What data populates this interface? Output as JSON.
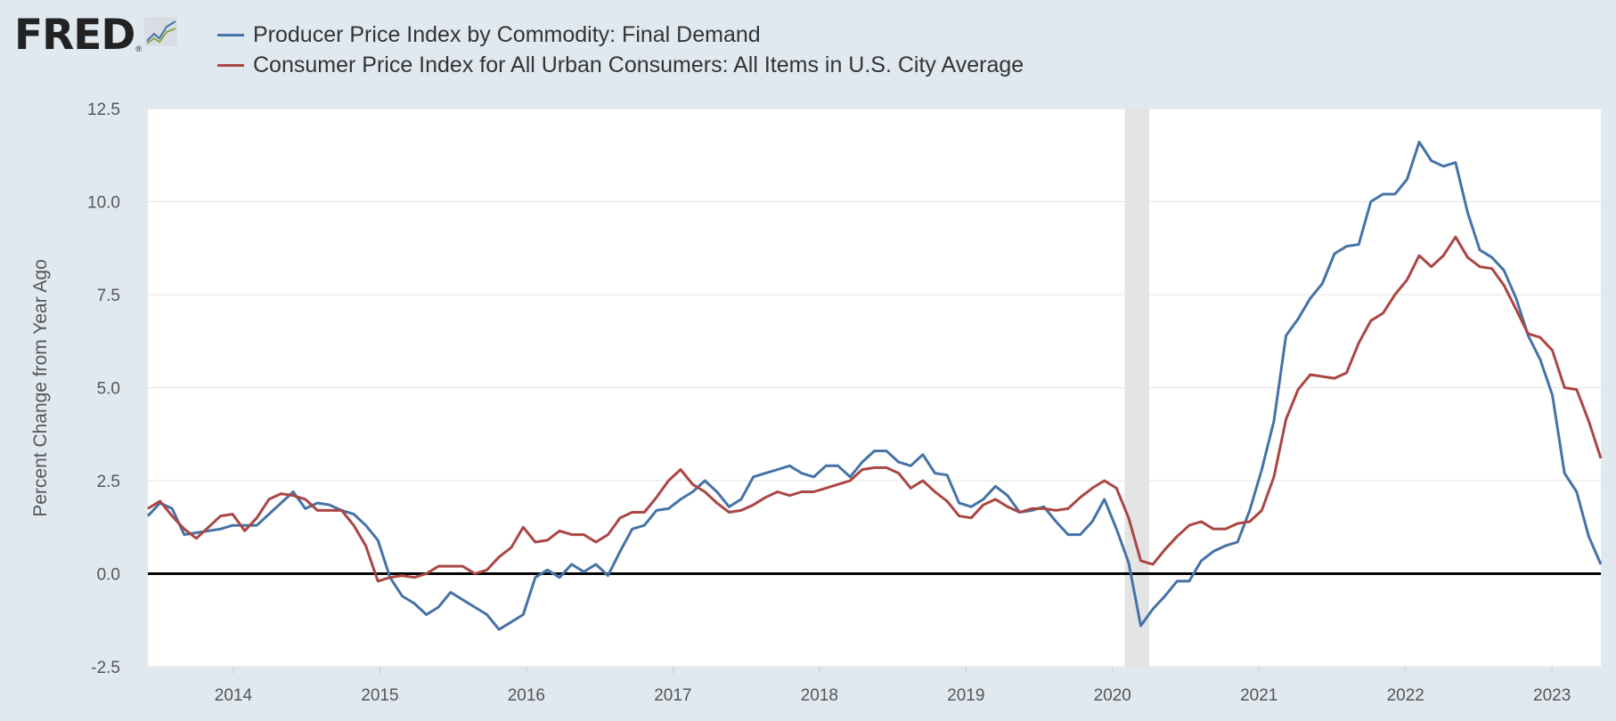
{
  "brand": {
    "name": "FRED",
    "reg": "®"
  },
  "legend": [
    {
      "label": "Producer Price Index by Commodity: Final Demand",
      "color": "#4572a7"
    },
    {
      "label": "Consumer Price Index for All Urban Consumers: All Items in U.S. City Average",
      "color": "#aa4643"
    }
  ],
  "chart_data": {
    "type": "line",
    "title": "",
    "xlabel": "",
    "ylabel": "Percent Change from Year Ago",
    "ylim": [
      -2.5,
      12.5
    ],
    "yticks": [
      "12.5",
      "10.0",
      "7.5",
      "5.0",
      "2.5",
      "0.0",
      "-2.5"
    ],
    "ytick_values": [
      12.5,
      10.0,
      7.5,
      5.0,
      2.5,
      0.0,
      -2.5
    ],
    "xticks": [
      "2014",
      "2015",
      "2016",
      "2017",
      "2018",
      "2019",
      "2020",
      "2021",
      "2022",
      "2023"
    ],
    "xtick_values": [
      2014,
      2015,
      2016,
      2017,
      2018,
      2019,
      2020,
      2021,
      2022,
      2023
    ],
    "x_start": "2013-06",
    "x_end": "2023-05",
    "recession": [
      "2020-02",
      "2020-04"
    ],
    "zero_line": 0,
    "series": [
      {
        "name": "Producer Price Index by Commodity: Final Demand",
        "color": "#4572a7",
        "values": [
          1.55,
          1.9,
          1.75,
          1.05,
          1.1,
          1.15,
          1.2,
          1.3,
          1.3,
          1.3,
          1.6,
          1.9,
          2.2,
          1.75,
          1.9,
          1.85,
          1.7,
          1.6,
          1.3,
          0.9,
          -0.1,
          -0.6,
          -0.8,
          -1.1,
          -0.9,
          -0.5,
          -0.7,
          -0.9,
          -1.1,
          -1.5,
          -1.3,
          -1.1,
          -0.1,
          0.1,
          -0.1,
          0.25,
          0.05,
          0.25,
          -0.05,
          0.6,
          1.2,
          1.3,
          1.7,
          1.75,
          2.0,
          2.2,
          2.5,
          2.2,
          1.8,
          2.0,
          2.6,
          2.7,
          2.8,
          2.9,
          2.7,
          2.6,
          2.9,
          2.9,
          2.6,
          3.0,
          3.3,
          3.3,
          3.0,
          2.9,
          3.2,
          2.7,
          2.65,
          1.9,
          1.8,
          2.0,
          2.35,
          2.1,
          1.65,
          1.7,
          1.8,
          1.4,
          1.05,
          1.05,
          1.4,
          2.0,
          1.2,
          0.3,
          -1.4,
          -0.95,
          -0.6,
          -0.2,
          -0.2,
          0.35,
          0.6,
          0.75,
          0.85,
          1.7,
          2.8,
          4.1,
          6.4,
          6.85,
          7.4,
          7.8,
          8.6,
          8.8,
          8.85,
          10.0,
          10.2,
          10.2,
          10.6,
          11.6,
          11.1,
          10.95,
          11.05,
          9.7,
          8.7,
          8.5,
          8.15,
          7.4,
          6.4,
          5.75,
          4.8,
          2.7,
          2.2,
          1.0,
          0.25
        ]
      },
      {
        "name": "Consumer Price Index for All Urban Consumers: All Items in U.S. City Average",
        "color": "#aa4643",
        "values": [
          1.75,
          1.95,
          1.55,
          1.2,
          0.95,
          1.25,
          1.55,
          1.6,
          1.15,
          1.5,
          2.0,
          2.15,
          2.1,
          2.0,
          1.7,
          1.7,
          1.7,
          1.3,
          0.75,
          -0.2,
          -0.1,
          -0.05,
          -0.1,
          0.0,
          0.2,
          0.2,
          0.2,
          0.0,
          0.1,
          0.45,
          0.7,
          1.25,
          0.85,
          0.9,
          1.15,
          1.05,
          1.05,
          0.85,
          1.05,
          1.5,
          1.65,
          1.65,
          2.05,
          2.5,
          2.8,
          2.4,
          2.2,
          1.9,
          1.65,
          1.7,
          1.85,
          2.05,
          2.2,
          2.1,
          2.2,
          2.2,
          2.3,
          2.4,
          2.5,
          2.8,
          2.85,
          2.85,
          2.7,
          2.3,
          2.5,
          2.2,
          1.95,
          1.55,
          1.5,
          1.85,
          2.0,
          1.8,
          1.65,
          1.75,
          1.75,
          1.7,
          1.75,
          2.05,
          2.3,
          2.5,
          2.3,
          1.5,
          0.35,
          0.25,
          0.65,
          1.0,
          1.3,
          1.4,
          1.2,
          1.2,
          1.35,
          1.4,
          1.7,
          2.6,
          4.15,
          4.95,
          5.35,
          5.3,
          5.25,
          5.4,
          6.2,
          6.8,
          7.0,
          7.5,
          7.9,
          8.55,
          8.25,
          8.55,
          9.05,
          8.5,
          8.25,
          8.2,
          7.75,
          7.1,
          6.45,
          6.35,
          6.0,
          5.0,
          4.95,
          4.1,
          3.1
        ]
      }
    ]
  }
}
